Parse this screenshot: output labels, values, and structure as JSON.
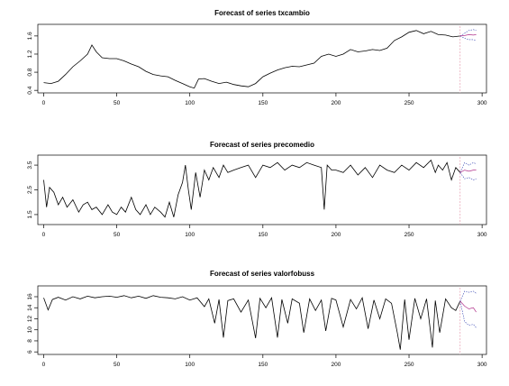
{
  "chart_data": [
    {
      "type": "line",
      "title": "Forecast of series txcambio",
      "xlim": [
        0,
        300
      ],
      "ylim": [
        0.4,
        1.8
      ],
      "x_ticks": [
        0,
        50,
        100,
        150,
        200,
        250,
        300
      ],
      "y_ticks": [
        0.4,
        0.8,
        1.2,
        1.6
      ],
      "y_tick_labels": [
        "0.4",
        "0.8",
        "1.2",
        "1.6"
      ],
      "forecast_origin": 285,
      "series": [
        {
          "x": [
            0,
            5,
            10,
            15,
            20,
            25,
            30,
            33,
            36,
            40,
            45,
            50,
            55,
            60,
            65,
            70,
            75,
            80,
            85,
            90,
            95,
            100,
            103,
            106,
            110,
            115,
            120,
            125,
            130,
            135,
            140,
            145,
            150,
            155,
            160,
            165,
            170,
            175,
            180,
            185,
            190,
            195,
            200,
            205,
            210,
            215,
            220,
            225,
            230,
            235,
            240,
            245,
            250,
            255,
            260,
            265,
            270,
            275,
            280,
            285
          ],
          "values": [
            0.57,
            0.55,
            0.6,
            0.75,
            0.92,
            1.05,
            1.2,
            1.4,
            1.25,
            1.12,
            1.1,
            1.1,
            1.05,
            0.98,
            0.92,
            0.82,
            0.75,
            0.72,
            0.7,
            0.62,
            0.55,
            0.48,
            0.45,
            0.65,
            0.66,
            0.6,
            0.55,
            0.58,
            0.53,
            0.5,
            0.48,
            0.55,
            0.7,
            0.78,
            0.85,
            0.9,
            0.93,
            0.92,
            0.96,
            1.0,
            1.15,
            1.2,
            1.15,
            1.2,
            1.3,
            1.25,
            1.27,
            1.3,
            1.28,
            1.33,
            1.5,
            1.58,
            1.68,
            1.72,
            1.65,
            1.7,
            1.63,
            1.62,
            1.58,
            1.6
          ]
        }
      ],
      "forecast": {
        "x": [
          285,
          288,
          291,
          294,
          296
        ],
        "mean": [
          1.6,
          1.61,
          1.63,
          1.62,
          1.63
        ],
        "upper": [
          1.6,
          1.66,
          1.72,
          1.74,
          1.72
        ],
        "lower": [
          1.6,
          1.55,
          1.52,
          1.52,
          1.5
        ]
      }
    },
    {
      "type": "line",
      "title": "Forecast of series precomedio",
      "xlim": [
        0,
        300
      ],
      "ylim": [
        1.2,
        3.8
      ],
      "x_ticks": [
        0,
        50,
        100,
        150,
        200,
        250,
        300
      ],
      "y_ticks": [
        1.5,
        2.5,
        3.5
      ],
      "y_tick_labels": [
        "1.5",
        "2.5",
        "3.5"
      ],
      "forecast_origin": 285,
      "series": [
        {
          "x": [
            0,
            2,
            4,
            7,
            10,
            13,
            16,
            20,
            24,
            27,
            30,
            33,
            36,
            40,
            44,
            47,
            50,
            53,
            56,
            60,
            63,
            66,
            70,
            73,
            76,
            80,
            83,
            86,
            89,
            92,
            95,
            97,
            99,
            101,
            104,
            107,
            110,
            113,
            116,
            120,
            123,
            126,
            130,
            135,
            140,
            145,
            150,
            155,
            160,
            165,
            170,
            175,
            180,
            185,
            190,
            192,
            194,
            197,
            200,
            205,
            210,
            215,
            220,
            225,
            230,
            235,
            240,
            245,
            250,
            255,
            260,
            265,
            268,
            270,
            273,
            276,
            279,
            282,
            285
          ],
          "values": [
            2.9,
            1.8,
            2.6,
            2.4,
            1.9,
            2.2,
            1.8,
            2.1,
            1.6,
            1.9,
            2.0,
            1.7,
            1.8,
            1.5,
            1.9,
            1.6,
            1.5,
            1.8,
            1.6,
            2.2,
            1.7,
            1.5,
            1.9,
            1.5,
            1.8,
            1.6,
            1.4,
            2.0,
            1.4,
            2.3,
            2.8,
            3.5,
            2.5,
            1.7,
            3.2,
            2.2,
            3.3,
            2.9,
            3.4,
            3.0,
            3.5,
            3.2,
            3.3,
            3.4,
            3.5,
            3.0,
            3.5,
            3.4,
            3.6,
            3.3,
            3.5,
            3.4,
            3.6,
            3.5,
            3.4,
            1.7,
            3.5,
            3.3,
            3.3,
            3.2,
            3.5,
            3.1,
            3.4,
            3.0,
            3.5,
            3.3,
            3.2,
            3.5,
            3.3,
            3.6,
            3.4,
            3.7,
            3.2,
            3.5,
            3.3,
            3.6,
            2.9,
            3.4,
            3.2
          ]
        }
      ],
      "forecast": {
        "x": [
          285,
          288,
          291,
          294,
          296
        ],
        "mean": [
          3.2,
          3.3,
          3.25,
          3.3,
          3.3
        ],
        "upper": [
          3.2,
          3.6,
          3.5,
          3.6,
          3.55
        ],
        "lower": [
          3.2,
          2.95,
          3.0,
          2.9,
          2.95
        ]
      }
    },
    {
      "type": "line",
      "title": "Forecast of series valorfobuss",
      "xlim": [
        0,
        300
      ],
      "ylim": [
        6,
        17.5
      ],
      "x_ticks": [
        0,
        50,
        100,
        150,
        200,
        250,
        300
      ],
      "y_ticks": [
        6,
        8,
        10,
        12,
        14,
        16
      ],
      "y_tick_labels": [
        "6",
        "8",
        "10",
        "12",
        "14",
        "16"
      ],
      "forecast_origin": 285,
      "series": [
        {
          "x": [
            0,
            3,
            6,
            10,
            15,
            20,
            25,
            30,
            35,
            40,
            45,
            50,
            55,
            60,
            65,
            70,
            75,
            80,
            85,
            90,
            95,
            100,
            105,
            110,
            113,
            117,
            120,
            123,
            126,
            130,
            135,
            140,
            145,
            148,
            152,
            156,
            160,
            163,
            167,
            170,
            175,
            178,
            182,
            186,
            190,
            193,
            197,
            200,
            205,
            210,
            214,
            218,
            222,
            226,
            230,
            234,
            238,
            242,
            244,
            247,
            250,
            254,
            258,
            262,
            266,
            268,
            271,
            275,
            279,
            282,
            285
          ],
          "values": [
            15.8,
            13.6,
            15.5,
            15.9,
            15.4,
            16.0,
            15.6,
            16.1,
            15.8,
            16.0,
            16.1,
            15.9,
            16.2,
            15.8,
            16.1,
            15.7,
            16.2,
            15.9,
            15.8,
            15.6,
            16.0,
            15.4,
            15.8,
            14.2,
            15.6,
            11.2,
            15.5,
            8.6,
            15.3,
            15.6,
            13.2,
            15.4,
            8.5,
            15.7,
            14.0,
            15.8,
            8.6,
            15.5,
            11.2,
            15.6,
            14.8,
            9.5,
            15.6,
            13.5,
            15.4,
            9.8,
            15.7,
            15.4,
            10.5,
            15.5,
            13.8,
            15.8,
            10.2,
            15.4,
            12.0,
            15.6,
            14.8,
            9.5,
            6.4,
            15.5,
            8.2,
            15.7,
            12.0,
            15.6,
            6.8,
            15.3,
            9.5,
            15.6,
            14.0,
            13.5,
            15.2
          ]
        }
      ],
      "forecast": {
        "x": [
          285,
          288,
          291,
          294,
          296
        ],
        "mean": [
          15.2,
          14.3,
          13.8,
          14.0,
          13.2
        ],
        "upper": [
          15.2,
          17.0,
          16.8,
          17.0,
          16.6
        ],
        "lower": [
          15.2,
          11.5,
          10.8,
          11.0,
          10.4
        ]
      }
    }
  ]
}
